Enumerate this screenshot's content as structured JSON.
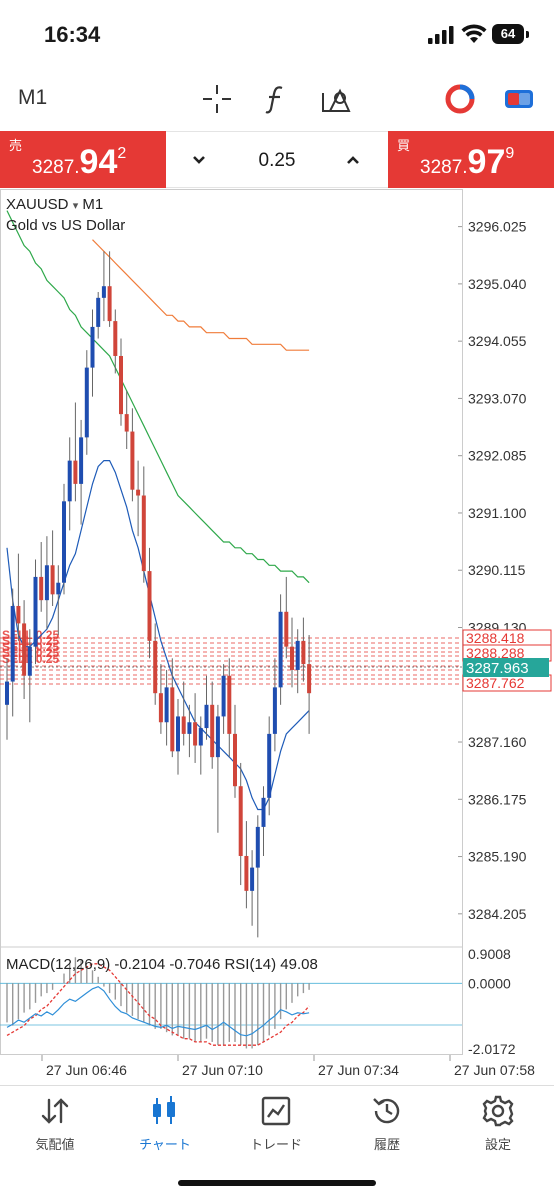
{
  "status_bar": {
    "time": "16:34",
    "battery": "64"
  },
  "toolbar": {
    "timeframe": "M1"
  },
  "trade": {
    "sell_tag": "売",
    "sell_small": "3287.",
    "sell_big": "94",
    "sell_sup": "2",
    "buy_tag": "買",
    "buy_small": "3287.",
    "buy_big": "97",
    "buy_sup": "9",
    "lot": "0.25",
    "down": "⌄",
    "up": "⌃"
  },
  "chart": {
    "symbol": "XAUUSD",
    "symbol_arrow": "▾",
    "timeframe": "M1",
    "description": "Gold vs US Dollar",
    "macd_label": "MACD(12,26,9) -0.2104 -0.7046 RSI(14) 49.08",
    "current_price": "3287.963",
    "price_line_labels": [
      "3288.418",
      "3288.288",
      "3287.762"
    ],
    "order_labels": [
      "SELL 0.25",
      "SELL 0.25",
      "SELL 0.25",
      "SELL 0.25",
      "SELL 0.25"
    ]
  },
  "chart_data": {
    "type": "candlestick",
    "price_ticks": [
      "3296.025",
      "3295.040",
      "3294.055",
      "3293.070",
      "3292.085",
      "3291.100",
      "3290.115",
      "3289.130",
      "3287.160",
      "3286.175",
      "3285.190",
      "3284.205"
    ],
    "indicator_ticks": [
      "0.9008",
      "0.0000",
      "-2.0172"
    ],
    "time_labels": [
      "27 Jun 06:46",
      "27 Jun 07:10",
      "27 Jun 07:34",
      "27 Jun 07:58"
    ],
    "ylim": [
      3283.6,
      3296.5
    ],
    "candles": [
      [
        3287.8,
        3288.6,
        3287.2,
        3288.2
      ],
      [
        3288.2,
        3289.8,
        3287.6,
        3289.5
      ],
      [
        3289.5,
        3290.4,
        3288.9,
        3289.2
      ],
      [
        3289.2,
        3289.6,
        3287.9,
        3288.3
      ],
      [
        3288.3,
        3289.1,
        3287.5,
        3288.8
      ],
      [
        3288.8,
        3290.3,
        3288.5,
        3290.0
      ],
      [
        3290.0,
        3290.6,
        3289.4,
        3289.6
      ],
      [
        3289.6,
        3290.7,
        3289.1,
        3290.2
      ],
      [
        3290.2,
        3290.8,
        3289.5,
        3289.7
      ],
      [
        3289.7,
        3290.2,
        3289.0,
        3289.9
      ],
      [
        3289.9,
        3291.6,
        3289.7,
        3291.3
      ],
      [
        3291.3,
        3292.4,
        3290.8,
        3292.0
      ],
      [
        3292.0,
        3293.0,
        3291.3,
        3291.6
      ],
      [
        3291.6,
        3292.7,
        3290.9,
        3292.4
      ],
      [
        3292.4,
        3293.9,
        3292.1,
        3293.6
      ],
      [
        3293.6,
        3294.6,
        3293.1,
        3294.3
      ],
      [
        3294.3,
        3294.9,
        3294.1,
        3294.8
      ],
      [
        3294.8,
        3295.6,
        3294.4,
        3295.0
      ],
      [
        3295.0,
        3295.6,
        3294.3,
        3294.4
      ],
      [
        3294.4,
        3294.6,
        3293.5,
        3293.8
      ],
      [
        3293.8,
        3294.1,
        3292.6,
        3292.8
      ],
      [
        3292.8,
        3293.2,
        3292.2,
        3292.5
      ],
      [
        3292.5,
        3292.9,
        3291.3,
        3291.5
      ],
      [
        3291.5,
        3292.0,
        3290.7,
        3291.4
      ],
      [
        3291.4,
        3291.9,
        3289.9,
        3290.1
      ],
      [
        3290.1,
        3290.5,
        3288.6,
        3288.9
      ],
      [
        3288.9,
        3289.2,
        3287.8,
        3288.0
      ],
      [
        3288.0,
        3288.5,
        3287.3,
        3287.5
      ],
      [
        3287.5,
        3288.4,
        3287.1,
        3288.1
      ],
      [
        3288.1,
        3288.6,
        3286.9,
        3287.0
      ],
      [
        3287.0,
        3287.9,
        3286.6,
        3287.6
      ],
      [
        3287.6,
        3288.2,
        3287.1,
        3287.3
      ],
      [
        3287.3,
        3287.8,
        3286.9,
        3287.5
      ],
      [
        3287.5,
        3288.0,
        3286.8,
        3287.1
      ],
      [
        3287.1,
        3287.6,
        3286.6,
        3287.4
      ],
      [
        3287.4,
        3288.3,
        3287.2,
        3287.8
      ],
      [
        3287.8,
        3288.2,
        3286.7,
        3286.9
      ],
      [
        3286.9,
        3287.8,
        3285.6,
        3287.6
      ],
      [
        3287.6,
        3288.5,
        3287.3,
        3288.3
      ],
      [
        3288.3,
        3288.6,
        3286.9,
        3287.3
      ],
      [
        3287.3,
        3287.8,
        3286.2,
        3286.4
      ],
      [
        3286.4,
        3286.8,
        3284.7,
        3285.2
      ],
      [
        3285.2,
        3285.8,
        3284.3,
        3284.6
      ],
      [
        3284.6,
        3285.3,
        3284.0,
        3285.0
      ],
      [
        3285.0,
        3285.9,
        3283.8,
        3285.7
      ],
      [
        3285.7,
        3286.4,
        3285.2,
        3286.2
      ],
      [
        3286.2,
        3287.6,
        3285.9,
        3287.3
      ],
      [
        3287.3,
        3288.6,
        3287.0,
        3288.1
      ],
      [
        3288.1,
        3289.7,
        3287.8,
        3289.4
      ],
      [
        3289.4,
        3290.0,
        3288.6,
        3288.8
      ],
      [
        3288.8,
        3289.3,
        3288.1,
        3288.4
      ],
      [
        3288.4,
        3289.1,
        3288.0,
        3288.9
      ],
      [
        3288.9,
        3289.3,
        3288.2,
        3288.5
      ],
      [
        3288.5,
        3289.0,
        3287.3,
        3288.0
      ]
    ],
    "series": [
      {
        "color": "#1e5bb8",
        "values": [
          3290.5,
          3289.6,
          3289.0,
          3288.8,
          3288.8,
          3288.9,
          3289.0,
          3289.1,
          3289.3,
          3289.6,
          3289.9,
          3290.2,
          3290.4,
          3290.8,
          3291.2,
          3291.6,
          3291.9,
          3292.0,
          3292.0,
          3291.8,
          3291.5,
          3291.2,
          3290.8,
          3290.5,
          3290.1,
          3289.7,
          3289.3,
          3288.9,
          3288.6,
          3288.3,
          3288.1,
          3287.9,
          3287.7,
          3287.5,
          3287.4,
          3287.3,
          3287.2,
          3287.1,
          3287.0,
          3286.9,
          3286.8,
          3286.7,
          3286.5,
          3286.2,
          3286.0,
          3286.0,
          3286.2,
          3286.6,
          3287.0,
          3287.3,
          3287.4,
          3287.5,
          3287.6,
          3287.7
        ]
      },
      {
        "color": "#2ea84a",
        "values": [
          3296.3,
          3296.1,
          3295.9,
          3295.7,
          3295.6,
          3295.4,
          3295.3,
          3295.1,
          3295.0,
          3294.9,
          3294.8,
          3294.6,
          3294.5,
          3294.3,
          3294.2,
          3294.1,
          3294.0,
          3293.9,
          3293.8,
          3293.6,
          3293.4,
          3293.2,
          3293.0,
          3292.8,
          3292.6,
          3292.4,
          3292.2,
          3292.0,
          3291.8,
          3291.6,
          3291.4,
          3291.3,
          3291.2,
          3291.1,
          3291.0,
          3290.9,
          3290.8,
          3290.7,
          3290.6,
          3290.6,
          3290.5,
          3290.5,
          3290.4,
          3290.4,
          3290.3,
          3290.3,
          3290.2,
          3290.2,
          3290.1,
          3290.1,
          3290.1,
          3290.0,
          3290.0,
          3289.9
        ]
      },
      {
        "color": "#f07c3a",
        "values": [
          null,
          null,
          null,
          null,
          null,
          null,
          null,
          null,
          null,
          null,
          null,
          null,
          null,
          null,
          null,
          3295.8,
          3295.7,
          3295.6,
          3295.5,
          3295.4,
          3295.3,
          3295.2,
          3295.1,
          3295.0,
          3294.9,
          3294.8,
          3294.7,
          3294.6,
          3294.5,
          3294.5,
          3294.4,
          3294.4,
          3294.3,
          3294.3,
          3294.3,
          3294.2,
          3294.2,
          3294.2,
          3294.2,
          3294.1,
          3294.1,
          3294.1,
          3294.1,
          3294.0,
          3294.0,
          3294.0,
          3294.0,
          3294.0,
          3294.0,
          3293.9,
          3293.9,
          3293.9,
          3293.9,
          3293.9
        ]
      }
    ],
    "macd_hist": [
      -1.2,
      -1.3,
      -1.1,
      -0.9,
      -0.8,
      -0.6,
      -0.4,
      -0.3,
      -0.2,
      0.0,
      0.3,
      0.6,
      0.8,
      0.7,
      0.5,
      0.4,
      0.2,
      -0.1,
      -0.3,
      -0.5,
      -0.7,
      -0.9,
      -1.0,
      -1.1,
      -1.2,
      -1.3,
      -1.4,
      -1.4,
      -1.5,
      -1.6,
      -1.6,
      -1.7,
      -1.7,
      -1.8,
      -1.8,
      -1.7,
      -1.8,
      -1.9,
      -1.9,
      -1.8,
      -1.8,
      -1.9,
      -2.0,
      -2.0,
      -1.9,
      -1.8,
      -1.6,
      -1.4,
      -1.1,
      -0.8,
      -0.6,
      -0.4,
      -0.3,
      -0.2
    ],
    "macd_signal": [
      -1.6,
      -1.5,
      -1.4,
      -1.3,
      -1.1,
      -1.0,
      -0.8,
      -0.7,
      -0.5,
      -0.3,
      -0.1,
      0.1,
      0.3,
      0.4,
      0.5,
      0.6,
      0.6,
      0.5,
      0.4,
      0.2,
      0.0,
      -0.2,
      -0.4,
      -0.6,
      -0.8,
      -1.0,
      -1.1,
      -1.3,
      -1.4,
      -1.5,
      -1.6,
      -1.7,
      -1.7,
      -1.8,
      -1.8,
      -1.8,
      -1.9,
      -1.9,
      -1.9,
      -1.9,
      -1.9,
      -1.9,
      -1.9,
      -1.9,
      -1.9,
      -1.8,
      -1.7,
      -1.6,
      -1.5,
      -1.3,
      -1.2,
      -1.0,
      -0.9,
      -0.7
    ],
    "rsi": [
      35,
      38,
      42,
      40,
      44,
      48,
      46,
      50,
      47,
      52,
      58,
      62,
      60,
      64,
      68,
      72,
      74,
      70,
      62,
      55,
      50,
      48,
      44,
      42,
      40,
      38,
      36,
      35,
      37,
      34,
      36,
      35,
      34,
      33,
      35,
      37,
      33,
      36,
      40,
      36,
      32,
      28,
      27,
      29,
      33,
      37,
      42,
      46,
      52,
      50,
      47,
      49,
      48,
      49
    ]
  },
  "nav": {
    "items": [
      {
        "label": "気配値"
      },
      {
        "label": "チャート"
      },
      {
        "label": "トレード"
      },
      {
        "label": "履歴"
      },
      {
        "label": "設定"
      }
    ]
  }
}
